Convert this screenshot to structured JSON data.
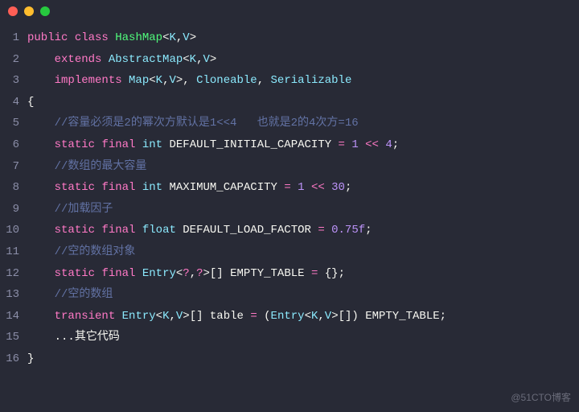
{
  "titlebar": {
    "dots": [
      "#ff5f56",
      "#ffbd2e",
      "#27c93f"
    ]
  },
  "colors": {
    "kw": "#ff79c6",
    "type": "#8be9fd",
    "ident": "#50fa7b",
    "punct": "#f8f8f2",
    "op": "#ff79c6",
    "num": "#bd93f9",
    "comment": "#6272a4",
    "builtin": "#8be9fd",
    "plain": "#f8f8f2"
  },
  "watermark": "@51CTO博客",
  "lines": [
    {
      "n": 1,
      "indent": 0,
      "tokens": [
        {
          "c": "kw",
          "t": "public"
        },
        {
          "c": "plain",
          "t": " "
        },
        {
          "c": "kw",
          "t": "class"
        },
        {
          "c": "plain",
          "t": " "
        },
        {
          "c": "ident",
          "t": "HashMap"
        },
        {
          "c": "punct",
          "t": "<"
        },
        {
          "c": "type",
          "t": "K"
        },
        {
          "c": "punct",
          "t": ","
        },
        {
          "c": "type",
          "t": "V"
        },
        {
          "c": "punct",
          "t": ">"
        }
      ]
    },
    {
      "n": 2,
      "indent": 4,
      "tokens": [
        {
          "c": "kw",
          "t": "extends"
        },
        {
          "c": "plain",
          "t": " "
        },
        {
          "c": "type",
          "t": "AbstractMap"
        },
        {
          "c": "punct",
          "t": "<"
        },
        {
          "c": "type",
          "t": "K"
        },
        {
          "c": "punct",
          "t": ","
        },
        {
          "c": "type",
          "t": "V"
        },
        {
          "c": "punct",
          "t": ">"
        }
      ]
    },
    {
      "n": 3,
      "indent": 4,
      "tokens": [
        {
          "c": "kw",
          "t": "implements"
        },
        {
          "c": "plain",
          "t": " "
        },
        {
          "c": "type",
          "t": "Map"
        },
        {
          "c": "punct",
          "t": "<"
        },
        {
          "c": "type",
          "t": "K"
        },
        {
          "c": "punct",
          "t": ","
        },
        {
          "c": "type",
          "t": "V"
        },
        {
          "c": "punct",
          "t": ">"
        },
        {
          "c": "punct",
          "t": ", "
        },
        {
          "c": "type",
          "t": "Cloneable"
        },
        {
          "c": "punct",
          "t": ", "
        },
        {
          "c": "type",
          "t": "Serializable"
        }
      ]
    },
    {
      "n": 4,
      "indent": 0,
      "tokens": [
        {
          "c": "punct",
          "t": "{"
        }
      ]
    },
    {
      "n": 5,
      "indent": 4,
      "tokens": [
        {
          "c": "comment",
          "t": "//容量必须是2的幂次方默认是1<<4   也就是2的4次方=16"
        }
      ]
    },
    {
      "n": 6,
      "indent": 4,
      "tokens": [
        {
          "c": "kw",
          "t": "static"
        },
        {
          "c": "plain",
          "t": " "
        },
        {
          "c": "kw",
          "t": "final"
        },
        {
          "c": "plain",
          "t": " "
        },
        {
          "c": "builtin",
          "t": "int"
        },
        {
          "c": "plain",
          "t": " "
        },
        {
          "c": "plain",
          "t": "DEFAULT_INITIAL_CAPACITY "
        },
        {
          "c": "op",
          "t": "="
        },
        {
          "c": "plain",
          "t": " "
        },
        {
          "c": "num",
          "t": "1"
        },
        {
          "c": "plain",
          "t": " "
        },
        {
          "c": "op",
          "t": "<<"
        },
        {
          "c": "plain",
          "t": " "
        },
        {
          "c": "num",
          "t": "4"
        },
        {
          "c": "punct",
          "t": ";"
        }
      ]
    },
    {
      "n": 7,
      "indent": 4,
      "tokens": [
        {
          "c": "comment",
          "t": "//数组的最大容量"
        }
      ]
    },
    {
      "n": 8,
      "indent": 4,
      "tokens": [
        {
          "c": "kw",
          "t": "static"
        },
        {
          "c": "plain",
          "t": " "
        },
        {
          "c": "kw",
          "t": "final"
        },
        {
          "c": "plain",
          "t": " "
        },
        {
          "c": "builtin",
          "t": "int"
        },
        {
          "c": "plain",
          "t": " "
        },
        {
          "c": "plain",
          "t": "MAXIMUM_CAPACITY "
        },
        {
          "c": "op",
          "t": "="
        },
        {
          "c": "plain",
          "t": " "
        },
        {
          "c": "num",
          "t": "1"
        },
        {
          "c": "plain",
          "t": " "
        },
        {
          "c": "op",
          "t": "<<"
        },
        {
          "c": "plain",
          "t": " "
        },
        {
          "c": "num",
          "t": "30"
        },
        {
          "c": "punct",
          "t": ";"
        }
      ]
    },
    {
      "n": 9,
      "indent": 4,
      "tokens": [
        {
          "c": "comment",
          "t": "//加载因子"
        }
      ]
    },
    {
      "n": 10,
      "indent": 4,
      "tokens": [
        {
          "c": "kw",
          "t": "static"
        },
        {
          "c": "plain",
          "t": " "
        },
        {
          "c": "kw",
          "t": "final"
        },
        {
          "c": "plain",
          "t": " "
        },
        {
          "c": "builtin",
          "t": "float"
        },
        {
          "c": "plain",
          "t": " "
        },
        {
          "c": "plain",
          "t": "DEFAULT_LOAD_FACTOR "
        },
        {
          "c": "op",
          "t": "="
        },
        {
          "c": "plain",
          "t": " "
        },
        {
          "c": "num",
          "t": "0.75f"
        },
        {
          "c": "punct",
          "t": ";"
        }
      ]
    },
    {
      "n": 11,
      "indent": 4,
      "tokens": [
        {
          "c": "comment",
          "t": "//空的数组对象"
        }
      ]
    },
    {
      "n": 12,
      "indent": 4,
      "tokens": [
        {
          "c": "kw",
          "t": "static"
        },
        {
          "c": "plain",
          "t": " "
        },
        {
          "c": "kw",
          "t": "final"
        },
        {
          "c": "plain",
          "t": " "
        },
        {
          "c": "type",
          "t": "Entry"
        },
        {
          "c": "punct",
          "t": "<"
        },
        {
          "c": "op",
          "t": "?"
        },
        {
          "c": "punct",
          "t": ","
        },
        {
          "c": "op",
          "t": "?"
        },
        {
          "c": "punct",
          "t": ">"
        },
        {
          "c": "punct",
          "t": "[] "
        },
        {
          "c": "plain",
          "t": "EMPTY_TABLE "
        },
        {
          "c": "op",
          "t": "="
        },
        {
          "c": "plain",
          "t": " "
        },
        {
          "c": "punct",
          "t": "{};"
        }
      ]
    },
    {
      "n": 13,
      "indent": 4,
      "tokens": [
        {
          "c": "comment",
          "t": "//空的数组"
        }
      ]
    },
    {
      "n": 14,
      "indent": 4,
      "tokens": [
        {
          "c": "kw",
          "t": "transient"
        },
        {
          "c": "plain",
          "t": " "
        },
        {
          "c": "type",
          "t": "Entry"
        },
        {
          "c": "punct",
          "t": "<"
        },
        {
          "c": "type",
          "t": "K"
        },
        {
          "c": "punct",
          "t": ","
        },
        {
          "c": "type",
          "t": "V"
        },
        {
          "c": "punct",
          "t": ">"
        },
        {
          "c": "punct",
          "t": "[] "
        },
        {
          "c": "plain",
          "t": "table "
        },
        {
          "c": "op",
          "t": "="
        },
        {
          "c": "plain",
          "t": " "
        },
        {
          "c": "punct",
          "t": "("
        },
        {
          "c": "type",
          "t": "Entry"
        },
        {
          "c": "punct",
          "t": "<"
        },
        {
          "c": "type",
          "t": "K"
        },
        {
          "c": "punct",
          "t": ","
        },
        {
          "c": "type",
          "t": "V"
        },
        {
          "c": "punct",
          "t": ">"
        },
        {
          "c": "punct",
          "t": "[]) "
        },
        {
          "c": "plain",
          "t": "EMPTY_TABLE"
        },
        {
          "c": "punct",
          "t": ";"
        }
      ]
    },
    {
      "n": 15,
      "indent": 4,
      "tokens": [
        {
          "c": "plain",
          "t": "...其它代码"
        }
      ]
    },
    {
      "n": 16,
      "indent": 0,
      "tokens": [
        {
          "c": "punct",
          "t": "}"
        }
      ]
    }
  ]
}
